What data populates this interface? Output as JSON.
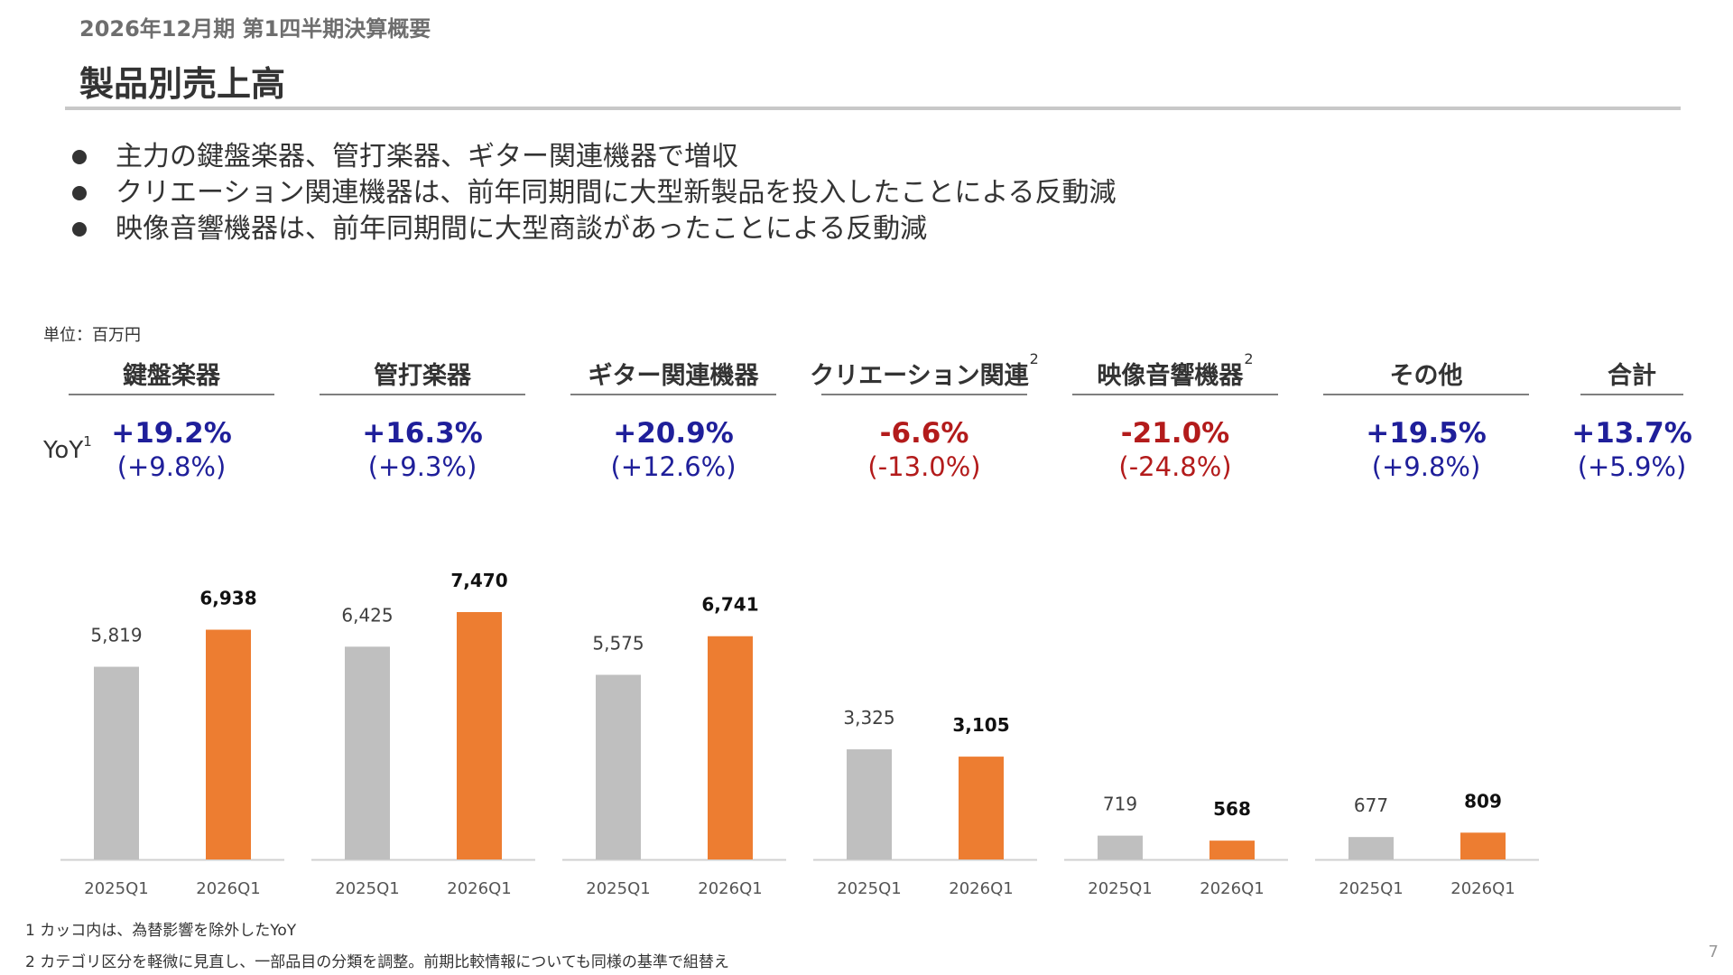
{
  "header": {
    "subtitle": "2026年12月期 第1四半期決算概要",
    "title": "製品別売上高"
  },
  "bullets": [
    "主力の鍵盤楽器、管打楽器、ギター関連機器で増収",
    "クリエーション関連機器は、前年同期間に大型新製品を投入したことによる反動減",
    "映像音響機器は、前年同期間に大型商談があったことによる反動減"
  ],
  "unit_label": "単位：百万円",
  "yoy_label": "YoY",
  "yoy_label_sup": "1",
  "categories": [
    {
      "name": "鍵盤楽器",
      "sup": "",
      "yoy": "+19.2%",
      "yoy_fx": "(+9.8%)",
      "trend": "pos"
    },
    {
      "name": "管打楽器",
      "sup": "",
      "yoy": "+16.3%",
      "yoy_fx": "(+9.3%)",
      "trend": "pos"
    },
    {
      "name": "ギター関連機器",
      "sup": "",
      "yoy": "+20.9%",
      "yoy_fx": "(+12.6%)",
      "trend": "pos"
    },
    {
      "name": "クリエーション関連",
      "sup": "2",
      "yoy": "-6.6%",
      "yoy_fx": "(-13.0%)",
      "trend": "neg"
    },
    {
      "name": "映像音響機器",
      "sup": "2",
      "yoy": "-21.0%",
      "yoy_fx": "(-24.8%)",
      "trend": "neg"
    },
    {
      "name": "その他",
      "sup": "",
      "yoy": "+19.5%",
      "yoy_fx": "(+9.8%)",
      "trend": "pos"
    },
    {
      "name": "合計",
      "sup": "",
      "yoy": "+13.7%",
      "yoy_fx": "(+5.9%)",
      "trend": "pos"
    }
  ],
  "chart_data": {
    "type": "bar",
    "categories": [
      "鍵盤楽器",
      "管打楽器",
      "ギター関連機器",
      "クリエーション関連",
      "映像音響機器",
      "その他"
    ],
    "x": [
      "2025Q1",
      "2026Q1"
    ],
    "series": [
      {
        "name": "2025Q1",
        "values": [
          5819,
          6425,
          5575,
          3325,
          719,
          677
        ],
        "labels": [
          "5,819",
          "6,425",
          "5,575",
          "3,325",
          "719",
          "677"
        ]
      },
      {
        "name": "2026Q1",
        "values": [
          6938,
          7470,
          6741,
          3105,
          568,
          809
        ],
        "labels": [
          "6,938",
          "7,470",
          "6,741",
          "3,105",
          "568",
          "809"
        ]
      }
    ],
    "title": "",
    "xlabel": "",
    "ylabel": "",
    "ylim": [
      0,
      7470
    ],
    "grid": false,
    "colors": {
      "2025Q1": "#bfbfbf",
      "2026Q1": "#ed7d31"
    }
  },
  "footnotes": [
    "1 カッコ内は、為替影響を除外したYoY",
    "2 カテゴリ区分を軽微に見直し、一部品目の分類を調整。前期比較情報についても同様の基準で組替え"
  ],
  "page_number": "7",
  "colors": {
    "positive": "#1f1f9a",
    "negative": "#b31b1b",
    "bar_prev": "#bfbfbf",
    "bar_curr": "#ed7d31"
  }
}
